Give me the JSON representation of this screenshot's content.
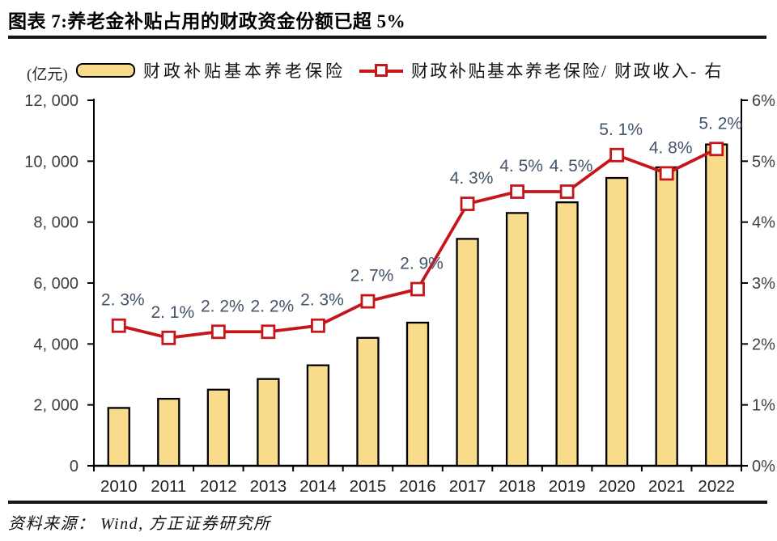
{
  "header": {
    "title": "图表 7:养老金补贴占用的财政资金份额已超 5%"
  },
  "footer": {
    "source": "资料来源： Wind, 方正证券研究所"
  },
  "colors": {
    "bar_fill": "#F8DC8C",
    "bar_border": "#000000",
    "line_red": "#C5161B",
    "point_label_gray": "#44546A",
    "axis_line": "#000000",
    "axis_tick_label": "#3F3F3F",
    "year_label": "#1F1F1F"
  },
  "chart_data": {
    "type": "bar",
    "subtype": "combo_bar_line_dual_axis",
    "title": "图表 7:养老金补贴占用的财政资金份额已超 5%",
    "unit_label": "(亿元)",
    "categories": [
      "2010",
      "2011",
      "2012",
      "2013",
      "2014",
      "2015",
      "2016",
      "2017",
      "2018",
      "2019",
      "2020",
      "2021",
      "2022"
    ],
    "series": [
      {
        "name": "财政补贴基本养老保险",
        "type": "bar",
        "axis": "left",
        "values": [
          1900,
          2200,
          2500,
          2850,
          3300,
          4200,
          4700,
          7450,
          8300,
          8650,
          9450,
          9800,
          10550
        ]
      },
      {
        "name": "财政补贴基本养老保险/ 财政收入- 右",
        "type": "line",
        "axis": "right",
        "marker": "open-square",
        "values": [
          2.3,
          2.1,
          2.2,
          2.2,
          2.3,
          2.7,
          2.9,
          4.3,
          4.5,
          4.5,
          5.1,
          4.8,
          5.2
        ],
        "point_labels": [
          "2. 3%",
          "2. 1%",
          "2. 2%",
          "2. 2%",
          "2. 3%",
          "2. 7%",
          "2. 9%",
          "4. 3%",
          "4. 5%",
          "4. 5%",
          "5. 1%",
          "4. 8%",
          "5. 2%"
        ]
      }
    ],
    "left_axis": {
      "min": 0,
      "max": 12000,
      "step": 2000,
      "tick_labels": [
        "0",
        "2, 000",
        "4, 000",
        "6, 000",
        "8, 000",
        "10, 000",
        "12, 000"
      ]
    },
    "right_axis": {
      "min": 0,
      "max": 6,
      "step": 1,
      "tick_labels": [
        "0%",
        "1%",
        "2%",
        "3%",
        "4%",
        "5%",
        "6%"
      ]
    },
    "grid": false,
    "legend_position": "top",
    "layout_hints": {
      "point_label_dx": 5,
      "point_label_dy": -25
    }
  }
}
